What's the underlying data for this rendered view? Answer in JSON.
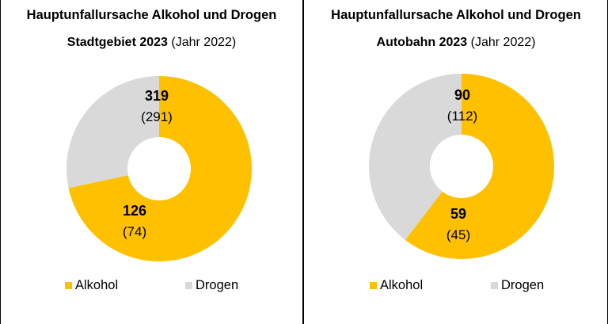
{
  "colors": {
    "alkohol": "#FFC000",
    "drogen": "#D9D9D9",
    "hole": "#FFFFFF"
  },
  "chart_data": [
    {
      "type": "pie",
      "title": "Hauptunfallursache Alkohol und Drogen",
      "subtitle_bold": "Stadtgebiet 2023",
      "subtitle_rest": "(Jahr 2022)",
      "categories": [
        "Alkohol",
        "Drogen"
      ],
      "values": [
        319,
        126
      ],
      "previous_labels": [
        "(291)",
        "(74)"
      ],
      "legend": [
        "Alkohol",
        "Drogen"
      ],
      "legend_position": "bottom"
    },
    {
      "type": "pie",
      "title": "Hauptunfallursache Alkohol und Drogen",
      "subtitle_bold": "Autobahn 2023",
      "subtitle_rest": "(Jahr 2022)",
      "categories": [
        "Alkohol",
        "Drogen"
      ],
      "values": [
        90,
        59
      ],
      "previous_labels": [
        "(112)",
        "(45)"
      ],
      "legend": [
        "Alkohol",
        "Drogen"
      ],
      "legend_position": "bottom"
    }
  ]
}
